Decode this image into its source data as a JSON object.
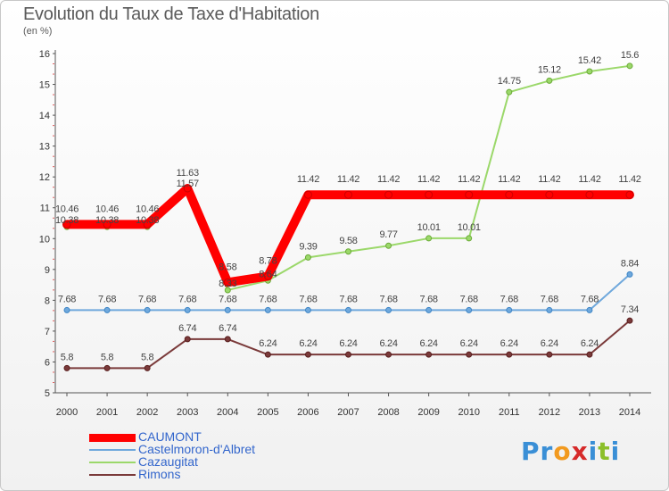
{
  "title": "Evolution du Taux de Taxe d'Habitation",
  "subtitle": "(en %)",
  "logo": {
    "text": "Proxiti",
    "letters": [
      {
        "ch": "P",
        "color": "#3a8fd6"
      },
      {
        "ch": "r",
        "color": "#3a8fd6"
      },
      {
        "ch": "o",
        "color": "#f29a1f"
      },
      {
        "ch": "x",
        "color": "#d62a2a"
      },
      {
        "ch": "i",
        "color": "#3a8fd6"
      },
      {
        "ch": "t",
        "color": "#8cbf2a"
      },
      {
        "ch": "i",
        "color": "#3a8fd6"
      }
    ]
  },
  "chart_data": {
    "type": "line",
    "x": [
      "2000",
      "2001",
      "2002",
      "2003",
      "2004",
      "2005",
      "2006",
      "2007",
      "2008",
      "2009",
      "2010",
      "2011",
      "2012",
      "2013",
      "2014"
    ],
    "ylim": [
      5,
      16
    ],
    "yticks": [
      "5",
      "6",
      "7",
      "8",
      "9",
      "10",
      "11",
      "12",
      "13",
      "14",
      "15",
      "16"
    ],
    "grid": false,
    "legend_position": "bottom-left",
    "series": [
      {
        "name": "CAUMONT",
        "color": "#ff0000",
        "marker_color": "#cc0000",
        "width": 10,
        "values": [
          10.46,
          10.46,
          10.46,
          11.63,
          8.58,
          8.78,
          11.42,
          11.42,
          11.42,
          11.42,
          11.42,
          11.42,
          11.42,
          11.42,
          11.42
        ],
        "labels": [
          "10.46",
          "10.46",
          "10.46",
          "11.63",
          "8.58",
          "8.78",
          "11.42",
          "11.42",
          "11.42",
          "11.42",
          "11.42",
          "11.42",
          "11.42",
          "11.42",
          "11.42"
        ]
      },
      {
        "name": "Castelmoron-d'Albret",
        "color": "#6fa8dc",
        "marker_color": "#3d85c6",
        "width": 2,
        "values": [
          7.68,
          7.68,
          7.68,
          7.68,
          7.68,
          7.68,
          7.68,
          7.68,
          7.68,
          7.68,
          7.68,
          7.68,
          7.68,
          7.68,
          8.84
        ],
        "labels": [
          "7.68",
          "7.68",
          "7.68",
          "7.68",
          "7.68",
          "7.68",
          "7.68",
          "7.68",
          "7.68",
          "7.68",
          "7.68",
          "7.68",
          "7.68",
          "7.68",
          "8.84"
        ]
      },
      {
        "name": "Cazaugitat",
        "color": "#9bd86a",
        "marker_color": "#6aaa36",
        "width": 2,
        "values": [
          10.38,
          10.38,
          10.38,
          11.57,
          8.33,
          8.64,
          9.39,
          9.58,
          9.77,
          10.01,
          10.01,
          14.75,
          15.12,
          15.42,
          15.6
        ],
        "labels": [
          "10.38",
          "10.38",
          "10.38",
          "11.57",
          "8.33",
          "8.64",
          "9.39",
          "9.58",
          "9.77",
          "10.01",
          "10.01",
          "14.75",
          "15.12",
          "15.42",
          "15.6"
        ]
      },
      {
        "name": "Rimons",
        "color": "#7a3a3a",
        "marker_color": "#5a1f1f",
        "width": 2,
        "values": [
          5.8,
          5.8,
          5.8,
          6.74,
          6.74,
          6.24,
          6.24,
          6.24,
          6.24,
          6.24,
          6.24,
          6.24,
          6.24,
          6.24,
          7.34
        ],
        "labels": [
          "5.8",
          "5.8",
          "5.8",
          "6.74",
          "6.74",
          "6.24",
          "6.24",
          "6.24",
          "6.24",
          "6.24",
          "6.24",
          "6.24",
          "6.24",
          "6.24",
          "7.34"
        ]
      }
    ]
  }
}
